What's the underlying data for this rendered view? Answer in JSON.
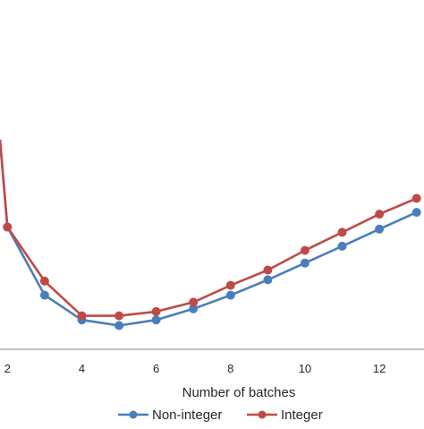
{
  "chart_data": {
    "type": "line",
    "title": "",
    "xlabel": "Number of batches",
    "ylabel": "",
    "xlim": [
      1.8,
      13.2
    ],
    "ylim": [
      0,
      100
    ],
    "x_ticks": [
      2,
      4,
      6,
      8,
      10,
      12
    ],
    "x_tick_labels": [
      "2",
      "4",
      "6",
      "8",
      "10",
      "12"
    ],
    "grid": false,
    "legend": {
      "position": "bottom",
      "entries": [
        "Non-integer",
        "Integer"
      ]
    },
    "series": [
      {
        "name": "Non-integer",
        "color": "#4A7EBB",
        "x": [
          1.8,
          2,
          3,
          4,
          5,
          6,
          7,
          8,
          9,
          10,
          11,
          12,
          13
        ],
        "values": [
          60,
          35,
          15.5,
          8.4,
          6.8,
          8.4,
          11.6,
          15.5,
          19.9,
          24.7,
          29.5,
          34.4,
          39.2
        ]
      },
      {
        "name": "Integer",
        "color": "#BE4B48",
        "x": [
          1.8,
          2,
          3,
          4,
          5,
          6,
          7,
          8,
          9,
          10,
          11,
          12,
          13
        ],
        "values": [
          60,
          35,
          19.5,
          9.6,
          9.6,
          10.8,
          13.5,
          18.3,
          22.7,
          28.3,
          33.5,
          38.7,
          43.2
        ]
      }
    ]
  }
}
